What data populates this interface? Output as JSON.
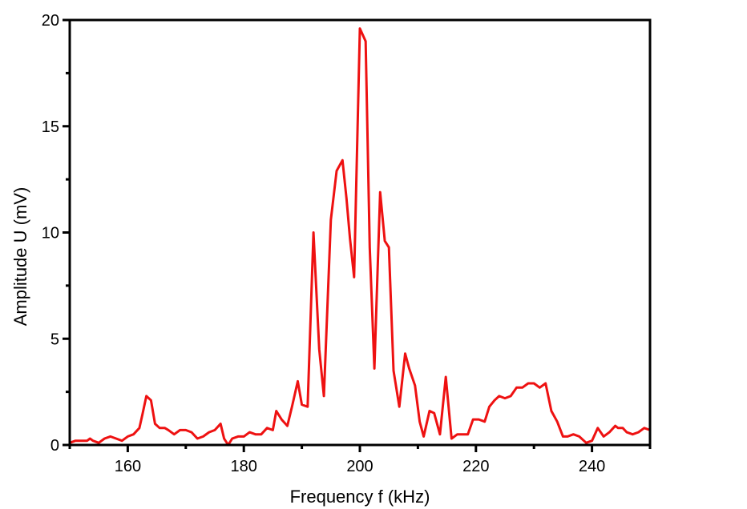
{
  "chart_data": {
    "type": "line",
    "title": "",
    "xlabel": "Frequency f (kHz)",
    "ylabel": "Amplitude U (mV)",
    "xlim": [
      150,
      250
    ],
    "ylim": [
      0,
      20
    ],
    "grid": false,
    "x_ticks": [
      160,
      180,
      200,
      220,
      240
    ],
    "x_tick_labels": [
      "160",
      "180",
      "200",
      "220",
      "240"
    ],
    "y_ticks": [
      0,
      5,
      10,
      15,
      20
    ],
    "y_tick_labels": [
      "0",
      "5",
      "10",
      "15",
      "20"
    ],
    "colors": {
      "line": "#ee1111",
      "frame": "#000000"
    },
    "series": [
      {
        "x": [
          150,
          151,
          152,
          153,
          153.5,
          154,
          155,
          156,
          157,
          158,
          159,
          160,
          161,
          162,
          162.5,
          163.2,
          164,
          164.7,
          165.5,
          166.4,
          167,
          168,
          169,
          170,
          171,
          172,
          173,
          174,
          175,
          176,
          176.6,
          177.3,
          178,
          179,
          180,
          181,
          182,
          183,
          184,
          185,
          185.6,
          186.5,
          187.5,
          188.3,
          189.3,
          190,
          191,
          192,
          193,
          193.8,
          195,
          196,
          197,
          197.7,
          198.3,
          199,
          200,
          201,
          201.7,
          202.5,
          203.5,
          204.3,
          205,
          205.8,
          206.8,
          207.8,
          208.5,
          209.5,
          210.3,
          211,
          212,
          212.8,
          213.8,
          214.8,
          215.8,
          216.8,
          217.7,
          218.6,
          219.5,
          220.5,
          221.5,
          222.3,
          223.2,
          224,
          225,
          226,
          227,
          228,
          229,
          230,
          231,
          232,
          233,
          234,
          235,
          235.8,
          236.8,
          237.8,
          239,
          240,
          241,
          242,
          243,
          244,
          244.5,
          245.3,
          246,
          247,
          248,
          249,
          250
        ],
        "y": [
          0.1,
          0.2,
          0.2,
          0.2,
          0.3,
          0.2,
          0.1,
          0.3,
          0.4,
          0.3,
          0.2,
          0.4,
          0.5,
          0.8,
          1.4,
          2.3,
          2.1,
          1.0,
          0.8,
          0.8,
          0.7,
          0.5,
          0.7,
          0.7,
          0.6,
          0.3,
          0.4,
          0.6,
          0.7,
          1.0,
          0.3,
          0.0,
          0.3,
          0.4,
          0.4,
          0.6,
          0.5,
          0.5,
          0.8,
          0.7,
          1.6,
          1.2,
          0.9,
          1.8,
          3.0,
          1.9,
          1.8,
          10.0,
          4.5,
          2.3,
          10.6,
          12.9,
          13.4,
          11.6,
          9.7,
          7.9,
          19.6,
          19.0,
          9.3,
          3.6,
          11.9,
          9.6,
          9.3,
          3.5,
          1.8,
          4.3,
          3.6,
          2.8,
          1.1,
          0.4,
          1.6,
          1.5,
          0.5,
          3.2,
          0.3,
          0.5,
          0.5,
          0.5,
          1.2,
          1.2,
          1.1,
          1.8,
          2.1,
          2.3,
          2.2,
          2.3,
          2.7,
          2.7,
          2.9,
          2.9,
          2.7,
          2.9,
          1.6,
          1.1,
          0.4,
          0.4,
          0.5,
          0.4,
          0.1,
          0.2,
          0.8,
          0.4,
          0.6,
          0.9,
          0.8,
          0.8,
          0.6,
          0.5,
          0.6,
          0.8,
          0.7
        ]
      }
    ]
  }
}
